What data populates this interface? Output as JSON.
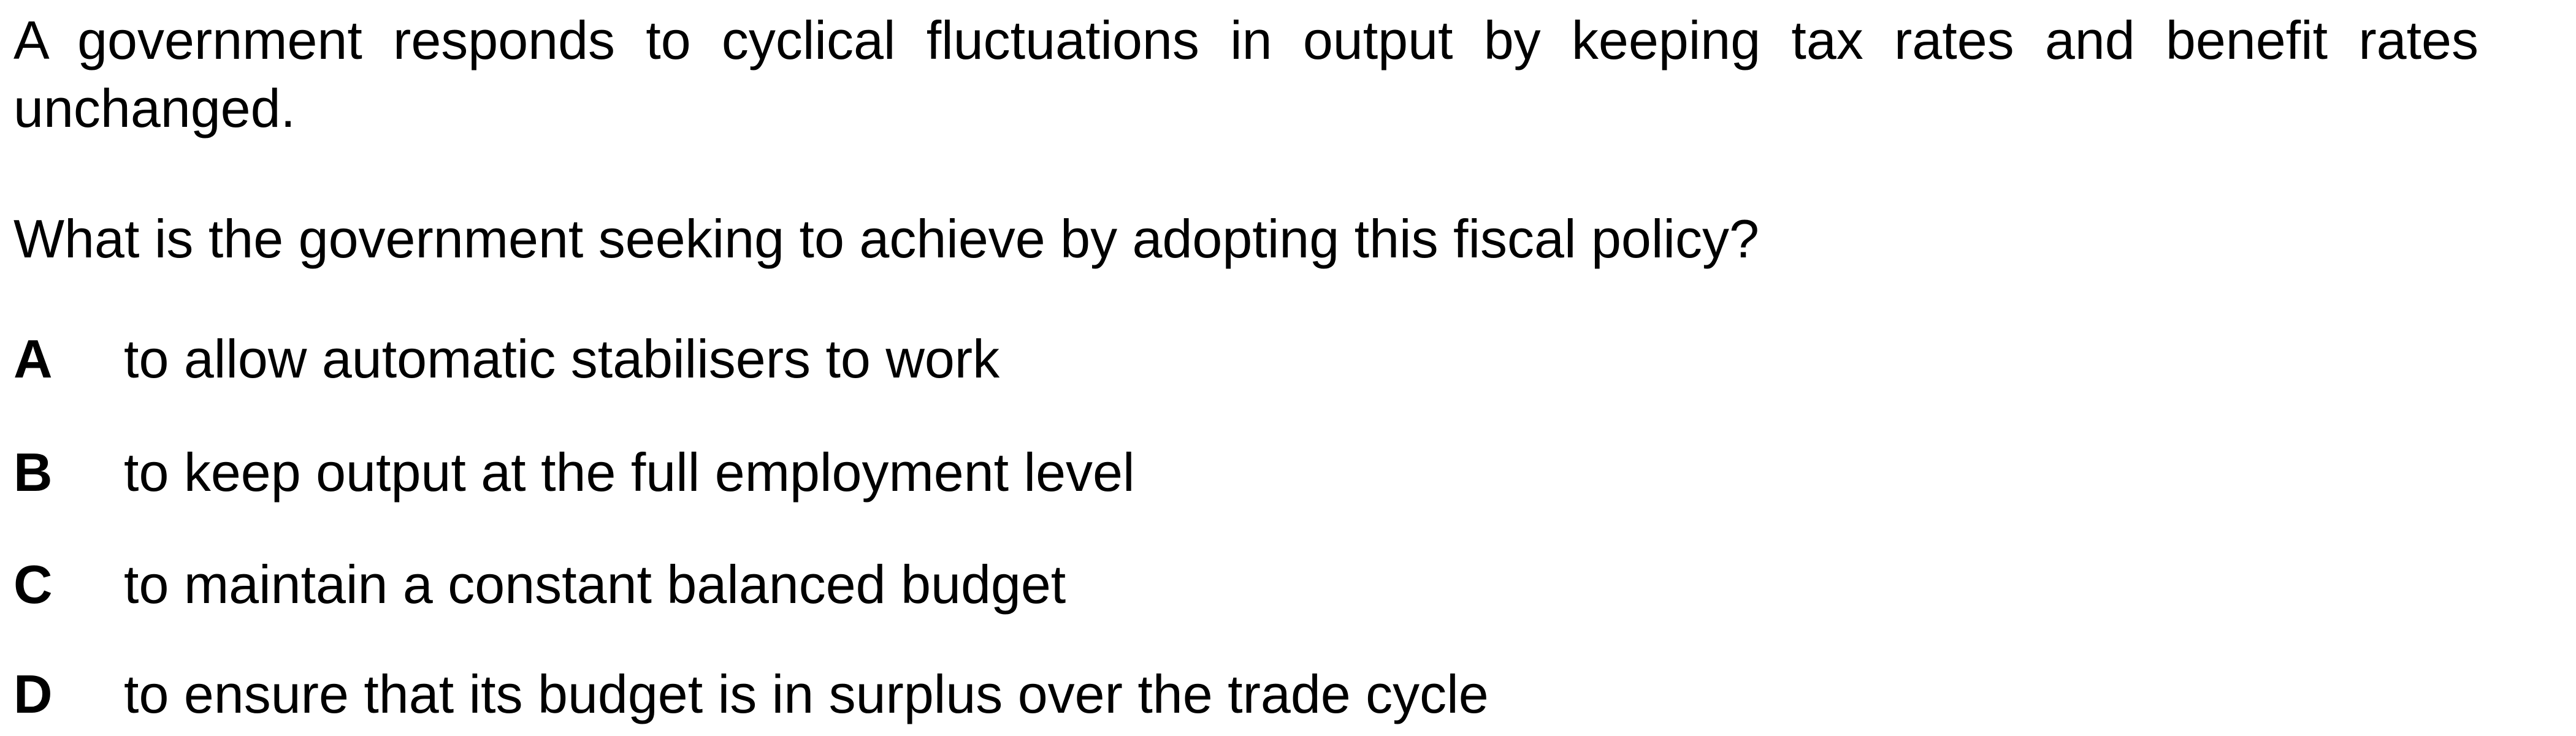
{
  "question": {
    "stem": "A government responds to cyclical fluctuations in output by keeping tax rates and benefit rates unchanged.",
    "prompt": "What is the government seeking to achieve by adopting this fiscal policy?",
    "options": [
      {
        "letter": "A",
        "text": "to allow automatic stabilisers to work"
      },
      {
        "letter": "B",
        "text": "to keep output at the full employment level"
      },
      {
        "letter": "C",
        "text": "to maintain a constant balanced budget"
      },
      {
        "letter": "D",
        "text": "to ensure that its budget is in surplus over the trade cycle"
      }
    ]
  }
}
